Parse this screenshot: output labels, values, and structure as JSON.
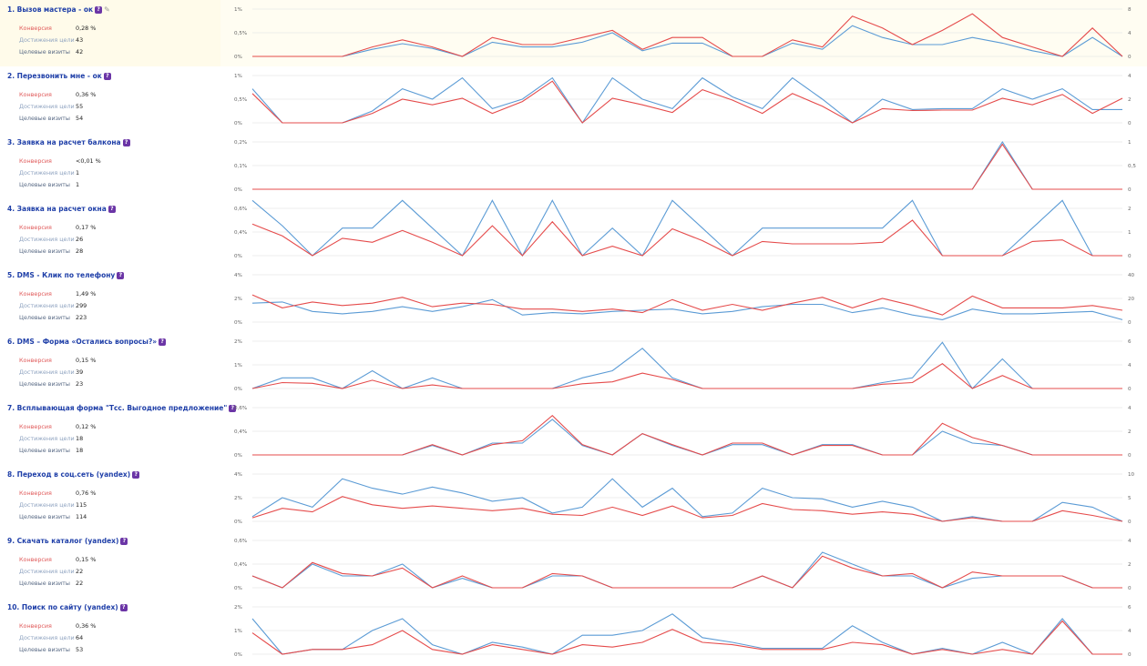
{
  "colors": {
    "conversion": "#e54b4b",
    "achievements": "#5b9bd5",
    "title": "#1f3fa8",
    "info_badge": "#6b35a6"
  },
  "labels": {
    "conversion": "Конверсия",
    "achievements": "Достижения цели",
    "visits": "Целевые визиты"
  },
  "icons": {
    "info": "info-badge-icon",
    "edit": "pencil-icon"
  },
  "goals": [
    {
      "title": "1. Вызов мастера - ок",
      "conversion": "0,28 %",
      "achievements": "43",
      "visits": "42",
      "edit_icon": true,
      "highlight": true
    },
    {
      "title": "2. Перезвонить мне - ок",
      "conversion": "0,36 %",
      "achievements": "55",
      "visits": "54"
    },
    {
      "title": "3. Заявка на расчет балкона",
      "conversion": "<0,01 %",
      "achievements": "1",
      "visits": "1"
    },
    {
      "title": "4. Заявка на расчет окна",
      "conversion": "0,17 %",
      "achievements": "26",
      "visits": "28"
    },
    {
      "title": "5. DMS - Клик по телефону",
      "conversion": "1,49 %",
      "achievements": "299",
      "visits": "223"
    },
    {
      "title": "6. DMS – Форма «Остались вопросы?»",
      "conversion": "0,15 %",
      "achievements": "39",
      "visits": "23"
    },
    {
      "title": "7. Всплывающая форма \"Тсс. Выгодное предложение\"",
      "conversion": "0,12 %",
      "achievements": "18",
      "visits": "18"
    },
    {
      "title": "8. Переход в соц.сеть (yandex)",
      "conversion": "0,76 %",
      "achievements": "115",
      "visits": "114"
    },
    {
      "title": "9. Скачать каталог (yandex)",
      "conversion": "0,15 %",
      "achievements": "22",
      "visits": "22"
    },
    {
      "title": "10. Поиск по сайту (yandex)",
      "conversion": "0,36 %",
      "achievements": "64",
      "visits": "53"
    }
  ],
  "chart_data": [
    {
      "type": "line",
      "left_ticks": [
        "1%",
        "0,5%",
        "0%"
      ],
      "right_ticks": [
        "8",
        "4",
        "0"
      ],
      "ylim": [
        0,
        1
      ],
      "series": [
        {
          "values": [
            0,
            0,
            0,
            0,
            0.2,
            0.35,
            0.2,
            0,
            0.4,
            0.25,
            0.25,
            0.4,
            0.55,
            0.15,
            0.4,
            0.4,
            0,
            0,
            0.35,
            0.2,
            0.85,
            0.6,
            0.25,
            0.55,
            0.9,
            0.4,
            0.2,
            0,
            0.6,
            0
          ]
        },
        {
          "values": [
            0,
            0,
            0,
            0,
            0.15,
            0.27,
            0.17,
            0,
            0.3,
            0.2,
            0.2,
            0.3,
            0.5,
            0.12,
            0.28,
            0.28,
            0,
            0,
            0.28,
            0.15,
            0.65,
            0.4,
            0.25,
            0.25,
            0.4,
            0.28,
            0.12,
            0,
            0.4,
            0
          ]
        }
      ]
    },
    {
      "type": "line",
      "left_ticks": [
        "1%",
        "0,5%",
        "0%"
      ],
      "right_ticks": [
        "4",
        "2",
        "0"
      ],
      "ylim": [
        0,
        1
      ],
      "series": [
        {
          "values": [
            0.62,
            0,
            0,
            0,
            0.2,
            0.5,
            0.38,
            0.52,
            0.2,
            0.45,
            0.88,
            0,
            0.52,
            0.38,
            0.22,
            0.7,
            0.48,
            0.2,
            0.62,
            0.35,
            0,
            0.3,
            0.26,
            0.27,
            0.27,
            0.52,
            0.38,
            0.6,
            0.2,
            0.52
          ]
        },
        {
          "values": [
            0.72,
            0,
            0,
            0,
            0.25,
            0.72,
            0.5,
            0.95,
            0.3,
            0.5,
            0.95,
            0,
            0.95,
            0.5,
            0.3,
            0.95,
            0.55,
            0.3,
            0.95,
            0.5,
            0,
            0.5,
            0.28,
            0.3,
            0.3,
            0.72,
            0.5,
            0.72,
            0.28,
            0.28
          ]
        }
      ]
    },
    {
      "type": "line",
      "left_ticks": [
        "0,2%",
        "0,1%",
        "0%"
      ],
      "right_ticks": [
        "1",
        "0,5",
        "0"
      ],
      "ylim": [
        0,
        0.2
      ],
      "series": [
        {
          "values": [
            0,
            0,
            0,
            0,
            0,
            0,
            0,
            0,
            0,
            0,
            0,
            0,
            0,
            0,
            0,
            0,
            0,
            0,
            0,
            0,
            0,
            0,
            0,
            0,
            0,
            0.19,
            0,
            0,
            0,
            0
          ]
        },
        {
          "values": [
            0,
            0,
            0,
            0,
            0,
            0,
            0,
            0,
            0,
            0,
            0,
            0,
            0,
            0,
            0,
            0,
            0,
            0,
            0,
            0,
            0,
            0,
            0,
            0,
            0,
            0.2,
            0,
            0,
            0,
            0
          ]
        }
      ]
    },
    {
      "type": "line",
      "left_ticks": [
        "0,6%",
        "0,4%",
        "0%"
      ],
      "right_ticks": [
        "2",
        "1",
        "0"
      ],
      "ylim": [
        0,
        0.6
      ],
      "series": [
        {
          "values": [
            0.4,
            0.25,
            0,
            0.22,
            0.17,
            0.32,
            0.17,
            0,
            0.38,
            0,
            0.43,
            0,
            0.12,
            0,
            0.34,
            0.19,
            0,
            0.18,
            0.15,
            0.15,
            0.15,
            0.17,
            0.45,
            0,
            0,
            0,
            0.18,
            0.2,
            0,
            0
          ]
        },
        {
          "values": [
            0.7,
            0.38,
            0,
            0.35,
            0.35,
            0.7,
            0.35,
            0,
            0.7,
            0,
            0.7,
            0,
            0.35,
            0,
            0.7,
            0.35,
            0,
            0.35,
            0.35,
            0.35,
            0.35,
            0.35,
            0.7,
            0,
            0,
            0,
            0.35,
            0.7,
            0,
            0
          ]
        }
      ]
    },
    {
      "type": "line",
      "left_ticks": [
        "4%",
        "2%",
        "0%"
      ],
      "right_ticks": [
        "40",
        "20",
        "0"
      ],
      "ylim": [
        0,
        4
      ],
      "series": [
        {
          "values": [
            2.3,
            1.2,
            1.7,
            1.4,
            1.6,
            2.1,
            1.3,
            1.6,
            1.5,
            1.1,
            1.1,
            0.9,
            1.1,
            0.8,
            1.9,
            1.0,
            1.5,
            1.0,
            1.6,
            2.1,
            1.2,
            2.0,
            1.4,
            0.6,
            2.2,
            1.2,
            1.2,
            1.2,
            1.4,
            1.0
          ]
        },
        {
          "values": [
            1.6,
            1.7,
            0.9,
            0.7,
            0.9,
            1.3,
            0.9,
            1.3,
            1.9,
            0.6,
            0.8,
            0.7,
            0.9,
            1.0,
            1.1,
            0.7,
            0.9,
            1.3,
            1.5,
            1.5,
            0.8,
            1.2,
            0.6,
            0.2,
            1.1,
            0.7,
            0.7,
            0.8,
            0.9,
            0.2
          ]
        }
      ]
    },
    {
      "type": "line",
      "left_ticks": [
        "2%",
        "1%",
        "0%"
      ],
      "right_ticks": [
        "6",
        "4",
        "0"
      ],
      "ylim": [
        0,
        2
      ],
      "series": [
        {
          "values": [
            0,
            0.25,
            0.22,
            0,
            0.35,
            0,
            0.15,
            0,
            0,
            0,
            0,
            0.2,
            0.28,
            0.65,
            0.38,
            0,
            0,
            0,
            0,
            0,
            0,
            0.18,
            0.25,
            1.05,
            0,
            0.55,
            0,
            0,
            0,
            0
          ]
        },
        {
          "values": [
            0,
            0.45,
            0.45,
            0,
            0.75,
            0,
            0.45,
            0,
            0,
            0,
            0,
            0.45,
            0.75,
            1.7,
            0.45,
            0,
            0,
            0,
            0,
            0,
            0,
            0.25,
            0.45,
            1.95,
            0,
            1.25,
            0,
            0,
            0,
            0
          ]
        }
      ]
    },
    {
      "type": "line",
      "left_ticks": [
        "0,6%",
        "0,4%",
        "0%"
      ],
      "right_ticks": [
        "4",
        "2",
        "0"
      ],
      "ylim": [
        0,
        0.6
      ],
      "series": [
        {
          "values": [
            0,
            0,
            0,
            0,
            0,
            0,
            0.13,
            0,
            0.13,
            0.18,
            0.5,
            0.13,
            0,
            0.27,
            0.13,
            0,
            0.15,
            0.15,
            0,
            0.12,
            0.12,
            0,
            0,
            0.4,
            0.22,
            0.12,
            0,
            0,
            0,
            0
          ]
        },
        {
          "values": [
            0,
            0,
            0,
            0,
            0,
            0,
            0.12,
            0,
            0.15,
            0.15,
            0.45,
            0.12,
            0,
            0.27,
            0.12,
            0,
            0.13,
            0.13,
            0,
            0.13,
            0.13,
            0,
            0,
            0.3,
            0.15,
            0.12,
            0,
            0,
            0,
            0
          ]
        }
      ]
    },
    {
      "type": "line",
      "left_ticks": [
        "4%",
        "2%",
        "0%"
      ],
      "right_ticks": [
        "10",
        "5",
        "0"
      ],
      "ylim": [
        0,
        4
      ],
      "series": [
        {
          "values": [
            0.3,
            1.1,
            0.8,
            2.1,
            1.4,
            1.1,
            1.3,
            1.1,
            0.9,
            1.1,
            0.6,
            0.5,
            1.2,
            0.5,
            1.3,
            0.3,
            0.5,
            1.5,
            1.0,
            0.9,
            0.6,
            0.8,
            0.6,
            0,
            0.3,
            0,
            0,
            0.9,
            0.5,
            0
          ]
        },
        {
          "values": [
            0.4,
            2.0,
            1.2,
            3.6,
            2.8,
            2.3,
            2.9,
            2.4,
            1.7,
            2.0,
            0.7,
            1.2,
            3.6,
            1.2,
            2.8,
            0.4,
            0.7,
            2.8,
            2.0,
            1.9,
            1.2,
            1.7,
            1.2,
            0,
            0.4,
            0,
            0,
            1.6,
            1.2,
            0
          ]
        }
      ]
    },
    {
      "type": "line",
      "left_ticks": [
        "0,6%",
        "0,4%",
        "0%"
      ],
      "right_ticks": [
        "4",
        "2",
        "0"
      ],
      "ylim": [
        0,
        0.6
      ],
      "series": [
        {
          "values": [
            0.15,
            0,
            0.32,
            0.18,
            0.15,
            0.25,
            0,
            0.15,
            0,
            0,
            0.18,
            0.15,
            0,
            0,
            0,
            0,
            0,
            0.15,
            0,
            0.4,
            0.25,
            0.15,
            0.18,
            0,
            0.2,
            0.15,
            0.15,
            0.15,
            0,
            0
          ]
        },
        {
          "values": [
            0.15,
            0,
            0.3,
            0.15,
            0.15,
            0.3,
            0,
            0.12,
            0,
            0,
            0.15,
            0.15,
            0,
            0,
            0,
            0,
            0,
            0.15,
            0,
            0.45,
            0.3,
            0.15,
            0.15,
            0,
            0.12,
            0.15,
            0.15,
            0.15,
            0,
            0
          ]
        }
      ]
    },
    {
      "type": "line",
      "left_ticks": [
        "2%",
        "1%",
        "0%"
      ],
      "right_ticks": [
        "6",
        "4",
        "0"
      ],
      "ylim": [
        0,
        2
      ],
      "series": [
        {
          "values": [
            0.9,
            0,
            0.2,
            0.2,
            0.4,
            1.0,
            0.2,
            0,
            0.4,
            0.2,
            0,
            0.4,
            0.3,
            0.5,
            1.05,
            0.5,
            0.4,
            0.2,
            0.2,
            0.2,
            0.5,
            0.4,
            0,
            0.2,
            0,
            0.2,
            0,
            1.4,
            0,
            0
          ]
        },
        {
          "values": [
            1.5,
            0,
            0.2,
            0.2,
            1.0,
            1.5,
            0.4,
            0,
            0.5,
            0.3,
            0,
            0.8,
            0.8,
            1.0,
            1.7,
            0.7,
            0.5,
            0.25,
            0.25,
            0.25,
            1.2,
            0.5,
            0,
            0.25,
            0,
            0.5,
            0,
            1.5,
            0,
            0
          ]
        }
      ]
    }
  ]
}
